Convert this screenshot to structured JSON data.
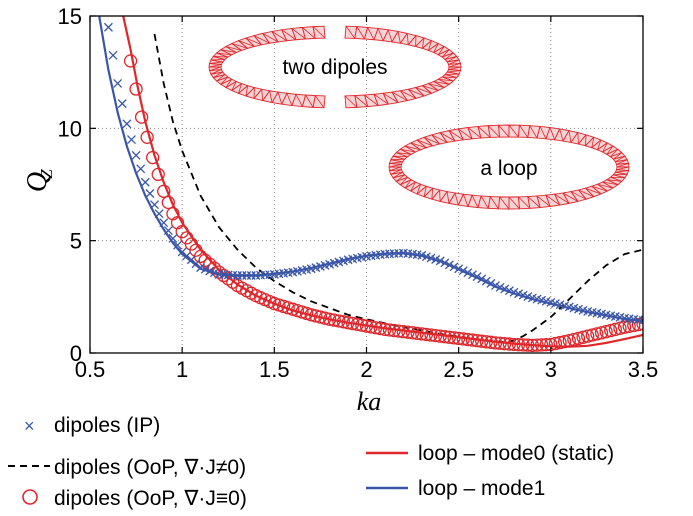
{
  "chart_data": {
    "type": "line",
    "xlabel": "ka",
    "ylabel": "Q_Z",
    "xlim": [
      0.5,
      3.5
    ],
    "ylim": [
      0,
      15
    ],
    "x_ticks": [
      "0.5",
      "1",
      "1.5",
      "2",
      "2.5",
      "3",
      "3.5"
    ],
    "y_ticks": [
      "0",
      "5",
      "10",
      "15"
    ],
    "grid": "dotted",
    "annotations": [
      "two dipoles",
      "a loop"
    ],
    "series": [
      {
        "name": "dipoles (IP)",
        "style": "marker-x",
        "color": "#3a56a8",
        "x": [
          0.6,
          0.65,
          0.7,
          0.75,
          0.8,
          0.85,
          0.9,
          0.95,
          1.0,
          1.1,
          1.2,
          1.3,
          1.4,
          1.5,
          1.6,
          1.7,
          1.8,
          1.9,
          2.0,
          2.1,
          2.2,
          2.3,
          2.4,
          2.5,
          2.6,
          2.7,
          2.8,
          2.9,
          3.0,
          3.1,
          3.2,
          3.3,
          3.4,
          3.5
        ],
        "y": [
          14.5,
          12.0,
          10.2,
          8.8,
          7.6,
          6.6,
          5.8,
          5.1,
          4.5,
          3.8,
          3.5,
          3.45,
          3.45,
          3.5,
          3.6,
          3.75,
          3.95,
          4.15,
          4.3,
          4.4,
          4.45,
          4.35,
          4.1,
          3.75,
          3.4,
          3.0,
          2.7,
          2.45,
          2.25,
          2.05,
          1.85,
          1.7,
          1.55,
          1.45
        ]
      },
      {
        "name": "dipoles (OoP, ∇·J≠0)",
        "style": "dashed",
        "color": "#000000",
        "x": [
          0.85,
          0.9,
          0.95,
          1.0,
          1.1,
          1.2,
          1.3,
          1.4,
          1.5,
          1.6,
          1.7,
          1.8,
          1.9,
          2.0,
          2.2,
          2.4,
          2.6,
          2.75,
          2.8,
          2.85,
          2.9,
          3.0,
          3.1,
          3.2,
          3.3,
          3.4,
          3.5
        ],
        "y": [
          14.2,
          12.0,
          10.3,
          9.0,
          7.0,
          5.6,
          4.6,
          3.8,
          3.2,
          2.7,
          2.3,
          2.0,
          1.7,
          1.5,
          1.15,
          0.85,
          0.6,
          0.48,
          0.55,
          0.75,
          1.0,
          1.6,
          2.4,
          3.2,
          3.9,
          4.4,
          4.6
        ]
      },
      {
        "name": "dipoles (OoP, ∇·J≡0)",
        "style": "marker-circle",
        "color": "#e0262b",
        "x": [
          0.72,
          0.78,
          0.84,
          0.9,
          0.95,
          1.0,
          1.1,
          1.2,
          1.3,
          1.4,
          1.5,
          1.6,
          1.7,
          1.8,
          1.9,
          2.0,
          2.1,
          2.2,
          2.3,
          2.4,
          2.5,
          2.6,
          2.7,
          2.8,
          2.9,
          3.0,
          3.1,
          3.2,
          3.3,
          3.4,
          3.5
        ],
        "y": [
          13.0,
          10.5,
          8.7,
          7.2,
          6.2,
          5.4,
          4.3,
          3.6,
          3.0,
          2.55,
          2.2,
          1.95,
          1.7,
          1.5,
          1.35,
          1.2,
          1.05,
          0.95,
          0.85,
          0.75,
          0.65,
          0.55,
          0.45,
          0.38,
          0.34,
          0.38,
          0.55,
          0.75,
          0.95,
          1.15,
          1.3
        ]
      },
      {
        "name": "loop – mode0 (static)",
        "style": "solid",
        "color": "#e0262b",
        "x": [
          0.68,
          0.72,
          0.76,
          0.8,
          0.85,
          0.9,
          0.95,
          1.0,
          1.1,
          1.2,
          1.3,
          1.4,
          1.5,
          1.6,
          1.7,
          1.8,
          1.9,
          2.0,
          2.1,
          2.2,
          2.3,
          2.4,
          2.5,
          2.6,
          2.7,
          2.8,
          2.9,
          3.0,
          3.1,
          3.2,
          3.3,
          3.4,
          3.5
        ],
        "y": [
          15.0,
          13.5,
          11.8,
          10.3,
          8.8,
          7.6,
          6.6,
          5.8,
          4.6,
          3.7,
          3.05,
          2.55,
          2.2,
          1.9,
          1.68,
          1.5,
          1.35,
          1.22,
          1.1,
          1.0,
          0.9,
          0.8,
          0.7,
          0.6,
          0.5,
          0.42,
          0.35,
          0.3,
          0.28,
          0.32,
          0.45,
          0.62,
          0.8
        ]
      },
      {
        "name": "loop – mode1",
        "style": "solid",
        "color": "#3a56a8",
        "x": [
          0.55,
          0.6,
          0.65,
          0.7,
          0.75,
          0.8,
          0.85,
          0.9,
          0.95,
          1.0,
          1.1,
          1.2,
          1.3,
          1.4,
          1.5,
          1.6,
          1.7,
          1.8,
          1.9,
          2.0,
          2.1,
          2.2,
          2.3,
          2.4,
          2.5,
          2.6,
          2.7,
          2.8,
          2.9,
          3.0,
          3.1,
          3.2,
          3.3,
          3.4,
          3.5
        ],
        "y": [
          15.0,
          12.6,
          10.7,
          9.2,
          8.0,
          7.0,
          6.2,
          5.5,
          4.9,
          4.4,
          3.75,
          3.5,
          3.45,
          3.45,
          3.52,
          3.63,
          3.78,
          3.98,
          4.18,
          4.33,
          4.42,
          4.45,
          4.33,
          4.08,
          3.72,
          3.35,
          2.95,
          2.65,
          2.4,
          2.2,
          2.0,
          1.82,
          1.67,
          1.52,
          1.42
        ]
      }
    ],
    "legend": [
      {
        "label": "dipoles (IP)",
        "marker": "x",
        "color": "#3a56a8"
      },
      {
        "label": "dipoles (OoP, ∇·J≠0)",
        "marker": "dashed",
        "color": "#000000"
      },
      {
        "label": "dipoles (OoP, ∇·J≡0)",
        "marker": "circle",
        "color": "#e0262b"
      },
      {
        "label": "loop – mode0 (static)",
        "marker": "line",
        "color": "#e0262b"
      },
      {
        "label": "loop – mode1",
        "marker": "line",
        "color": "#3a56a8"
      }
    ]
  }
}
